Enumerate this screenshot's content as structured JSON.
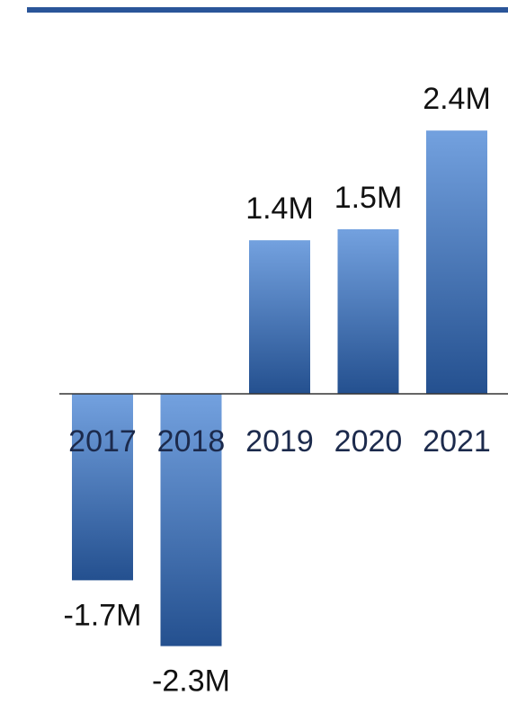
{
  "colors": {
    "accent_rule": "#2a5599",
    "bar_top": "#73a1df",
    "bar_bottom": "#24508f",
    "axis": "#333333",
    "tick_text": "#1c2a4c",
    "value_text": "#111111"
  },
  "chart_data": {
    "type": "bar",
    "categories": [
      "2017",
      "2018",
      "2019",
      "2020",
      "2021"
    ],
    "values": [
      -1.7,
      -2.3,
      1.4,
      1.5,
      2.4
    ],
    "value_labels": [
      "-1.7M",
      "-2.3M",
      "1.4M",
      "1.5M",
      "2.4M"
    ],
    "title": "",
    "xlabel": "",
    "ylabel": "",
    "ylim": [
      -2.5,
      2.6
    ],
    "grid": false,
    "legend": "none"
  }
}
